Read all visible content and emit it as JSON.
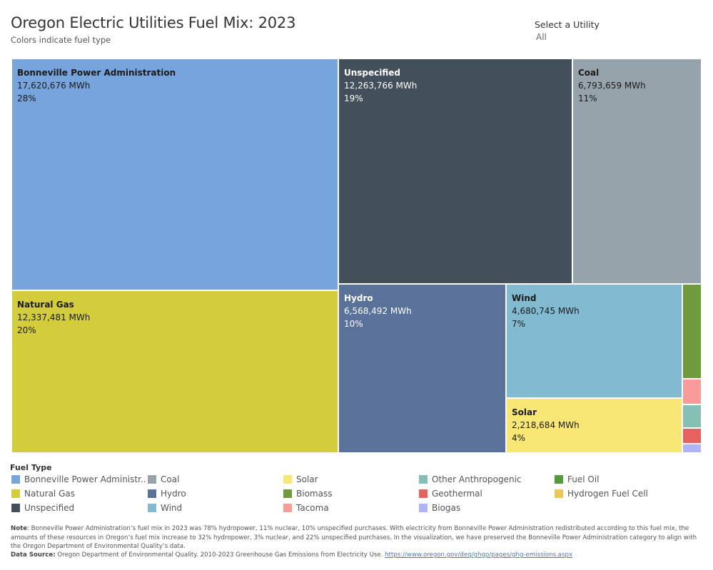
{
  "header": {
    "title": "Oregon Electric Utilities Fuel Mix: 2023",
    "subtitle": "Colors indicate fuel type"
  },
  "filter": {
    "label": "Select a Utility",
    "value": "All"
  },
  "legend": {
    "title": "Fuel Type",
    "items": [
      {
        "label": "Bonneville Power Administr..",
        "color": "#78a4dd"
      },
      {
        "label": "Natural Gas",
        "color": "#d4cd3b"
      },
      {
        "label": "Unspecified",
        "color": "#434f5a"
      },
      {
        "label": "Coal",
        "color": "#97a3ab"
      },
      {
        "label": "Hydro",
        "color": "#5a729a"
      },
      {
        "label": "Wind",
        "color": "#82bbd1"
      },
      {
        "label": "Solar",
        "color": "#f8e675"
      },
      {
        "label": "Biomass",
        "color": "#6f9a3e"
      },
      {
        "label": "Tacoma",
        "color": "#f79c99"
      },
      {
        "label": "Other Anthropogenic",
        "color": "#86c0b4"
      },
      {
        "label": "Geothermal",
        "color": "#e5625e"
      },
      {
        "label": "Biogas",
        "color": "#afb3f7"
      },
      {
        "label": "Fuel Oil",
        "color": "#57993d"
      },
      {
        "label": "Hydrogen Fuel Cell",
        "color": "#efc759"
      }
    ]
  },
  "chart_data": {
    "type": "treemap",
    "unit": "MWh",
    "items": [
      {
        "name": "Bonneville Power Administration",
        "value": 17620676,
        "value_label": "17,620,676 MWh",
        "pct": "28%",
        "color": "#78a4dd",
        "text_color": "#1a1a1a"
      },
      {
        "name": "Natural Gas",
        "value": 12337481,
        "value_label": "12,337,481 MWh",
        "pct": "20%",
        "color": "#d4cd3b",
        "text_color": "#1a1a1a"
      },
      {
        "name": "Unspecified",
        "value": 12263766,
        "value_label": "12,263,766 MWh",
        "pct": "19%",
        "color": "#434f5a",
        "text_color": "#ffffff"
      },
      {
        "name": "Coal",
        "value": 6793659,
        "value_label": "6,793,659 MWh",
        "pct": "11%",
        "color": "#97a3ab",
        "text_color": "#1a1a1a"
      },
      {
        "name": "Hydro",
        "value": 6568492,
        "value_label": "6,568,492 MWh",
        "pct": "10%",
        "color": "#5a729a",
        "text_color": "#ffffff"
      },
      {
        "name": "Wind",
        "value": 4680745,
        "value_label": "4,680,745 MWh",
        "pct": "7%",
        "color": "#82bbd1",
        "text_color": "#1a1a1a"
      },
      {
        "name": "Solar",
        "value": 2218684,
        "value_label": "2,218,684 MWh",
        "pct": "4%",
        "color": "#f8e675",
        "text_color": "#1a1a1a"
      },
      {
        "name": "Biomass",
        "value": null,
        "color": "#6f9a3e"
      },
      {
        "name": "Tacoma",
        "value": null,
        "color": "#f79c99"
      },
      {
        "name": "Other Anthropogenic",
        "value": null,
        "color": "#86c0b4"
      },
      {
        "name": "Geothermal",
        "value": null,
        "color": "#e5625e"
      },
      {
        "name": "Biogas",
        "value": null,
        "color": "#afb3f7"
      }
    ]
  },
  "footer": {
    "note_label": "Note",
    "note_text": ": Bonneville Power Administration’s fuel mix in 2023 was 78% hydropower, 11% nuclear, 10% unspecified purchases. With electricity from Bonneville Power Administration redistributed according to this fuel mix, the amounts of these resources in Oregon’s fuel mix increase to 32% hydropower, 3% nuclear, and 22% unspecified purchases. In the visualization, we have preserved the Bonneville Power Administration category to align with the Oregon Department of Environmental Quality’s data.",
    "source_label": "Data Source:",
    "source_text": " Oregon Department of Environmental Quality. 2010-2023 Greenhouse Gas Emissions from Electricity Use. ",
    "source_link": "https://www.oregon.gov/deq/ghgp/pages/ghg-emissions.aspx"
  }
}
